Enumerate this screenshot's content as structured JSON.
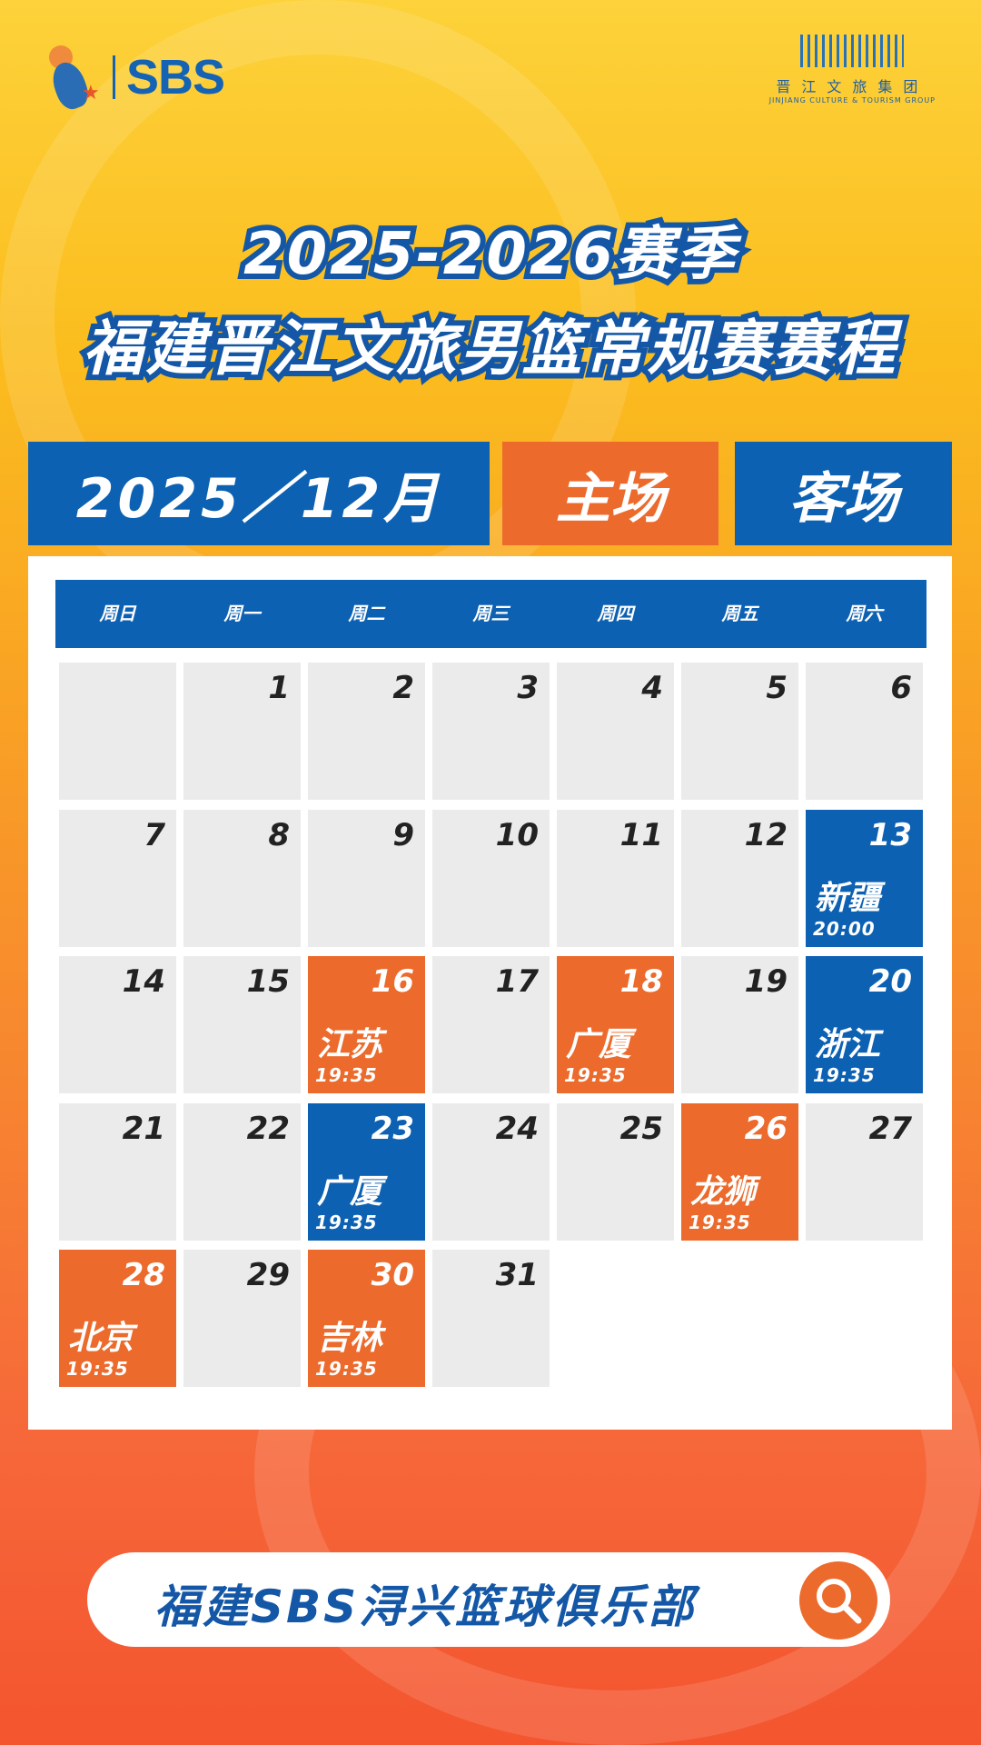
{
  "logos": {
    "left_brand": "SBS",
    "right_brand_cn": "晋江文旅集团",
    "right_brand_en": "JINJIANG CULTURE & TOURISM GROUP"
  },
  "title": {
    "line1": "2025-2026赛季",
    "line2": "福建晋江文旅男篮常规赛赛程"
  },
  "header": {
    "month": "2025／12月",
    "home_label": "主场",
    "away_label": "客场"
  },
  "colors": {
    "home": "#ec6a2c",
    "away": "#0d61b3",
    "empty": "#ebebeb"
  },
  "calendar": {
    "weekdays": [
      "周日",
      "周一",
      "周二",
      "周三",
      "周四",
      "周五",
      "周六"
    ],
    "leading_blank_days": 1,
    "days_in_month": 31,
    "games": [
      {
        "day": "13",
        "type": "away",
        "opponent": "新疆",
        "time": "20:00"
      },
      {
        "day": "16",
        "type": "home",
        "opponent": "江苏",
        "time": "19:35"
      },
      {
        "day": "18",
        "type": "home",
        "opponent": "广厦",
        "time": "19:35"
      },
      {
        "day": "20",
        "type": "away",
        "opponent": "浙江",
        "time": "19:35"
      },
      {
        "day": "23",
        "type": "away",
        "opponent": "广厦",
        "time": "19:35"
      },
      {
        "day": "26",
        "type": "home",
        "opponent": "龙狮",
        "time": "19:35"
      },
      {
        "day": "28",
        "type": "home",
        "opponent": "北京",
        "time": "19:35"
      },
      {
        "day": "30",
        "type": "home",
        "opponent": "吉林",
        "time": "19:35"
      }
    ]
  },
  "search": {
    "text": "福建SBS浔兴篮球俱乐部",
    "icon": "search-icon"
  }
}
